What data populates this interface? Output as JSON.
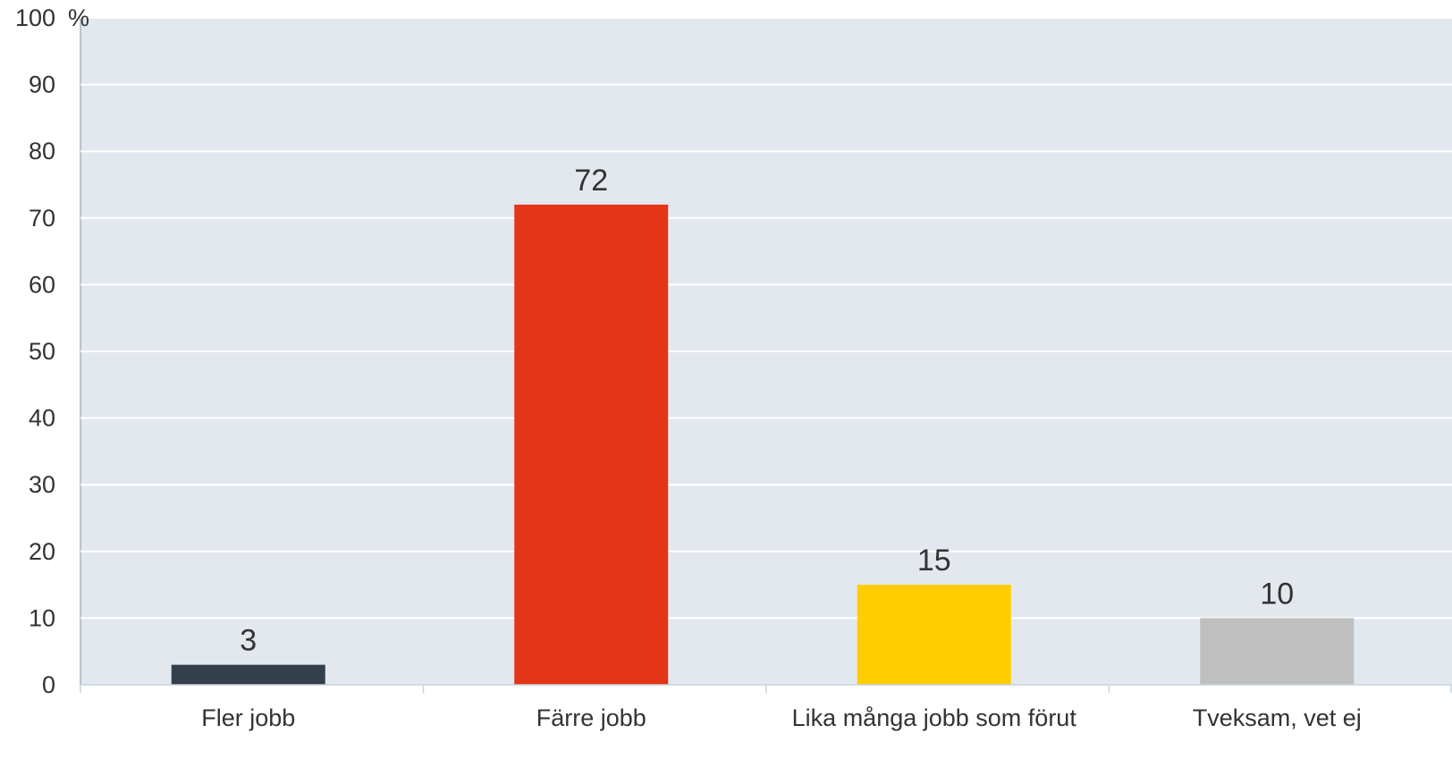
{
  "chart_data": {
    "type": "bar",
    "categories": [
      "Fler jobb",
      "Färre jobb",
      "Lika många jobb som förut",
      "Tveksam, vet ej"
    ],
    "values": [
      3,
      72,
      15,
      10
    ],
    "data_labels": [
      "3",
      "72",
      "15",
      "10"
    ],
    "colors": [
      "#333f4b",
      "#e33517",
      "#ffcc00",
      "#bfbfbf"
    ],
    "ylim": [
      0,
      100
    ],
    "yticks": [
      0,
      10,
      20,
      30,
      40,
      50,
      60,
      70,
      80,
      90,
      100
    ],
    "y_unit": "%",
    "grid": true,
    "plot_background": "#e3e8ef",
    "title": "",
    "xlabel": "",
    "ylabel": ""
  }
}
